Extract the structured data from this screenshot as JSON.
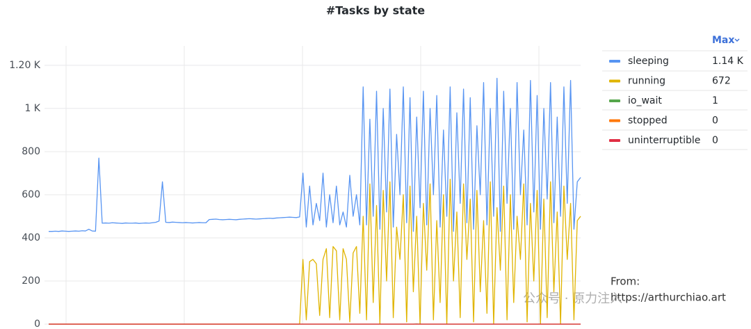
{
  "chart_data": {
    "type": "line",
    "title": "#Tasks by state",
    "ylim": [
      0,
      1290
    ],
    "yticks": [
      0,
      200,
      400,
      600,
      800,
      {
        "value": 1000,
        "label": "1 K"
      },
      {
        "value": 1200,
        "label": "1.20 K"
      }
    ],
    "grid": true,
    "legend_header": "Max",
    "legend": "right",
    "annotations": [
      "From:",
      "https://arthurchiao.art",
      "公众号 · 原力注入"
    ],
    "series": [
      {
        "name": "sleeping",
        "color": "#5794f2",
        "max": 1140,
        "max_label": "1.14 K",
        "values": [
          430,
          430,
          431,
          430,
          432,
          431,
          430,
          431,
          432,
          431,
          433,
          432,
          440,
          432,
          431,
          770,
          468,
          469,
          468,
          470,
          469,
          468,
          467,
          469,
          468,
          468,
          469,
          467,
          468,
          469,
          468,
          470,
          472,
          478,
          660,
          472,
          471,
          473,
          472,
          471,
          470,
          471,
          470,
          469,
          470,
          471,
          470,
          470,
          485,
          486,
          487,
          485,
          484,
          485,
          486,
          485,
          484,
          486,
          487,
          488,
          489,
          488,
          487,
          488,
          489,
          490,
          491,
          490,
          492,
          493,
          494,
          495,
          496,
          495,
          494,
          497,
          700,
          450,
          640,
          460,
          560,
          480,
          700,
          450,
          600,
          470,
          640,
          460,
          520,
          450,
          690,
          500,
          600,
          460,
          1100,
          460,
          950,
          500,
          1080,
          440,
          1000,
          520,
          1090,
          450,
          880,
          600,
          1100,
          470,
          1050,
          430,
          960,
          540,
          1080,
          460,
          1000,
          600,
          1060,
          450,
          900,
          500,
          1100,
          430,
          980,
          560,
          1090,
          470,
          1050,
          440,
          920,
          600,
          1120,
          460,
          1000,
          500,
          1140,
          430,
          1080,
          560,
          1000,
          440,
          1120,
          600,
          900,
          460,
          1130,
          520,
          1060,
          440,
          1000,
          580,
          1120,
          470,
          960,
          500,
          1100,
          560,
          1130,
          440,
          660,
          680
        ]
      },
      {
        "name": "running",
        "color": "#e0b400",
        "max": 672,
        "values": [
          0,
          0,
          0,
          0,
          0,
          0,
          0,
          0,
          0,
          0,
          0,
          0,
          0,
          0,
          0,
          0,
          0,
          0,
          0,
          0,
          0,
          0,
          0,
          0,
          0,
          0,
          0,
          0,
          0,
          0,
          0,
          0,
          0,
          0,
          0,
          0,
          0,
          0,
          0,
          0,
          0,
          0,
          0,
          0,
          0,
          0,
          0,
          0,
          0,
          0,
          0,
          0,
          0,
          0,
          0,
          0,
          0,
          0,
          0,
          0,
          0,
          0,
          0,
          0,
          0,
          0,
          0,
          0,
          0,
          0,
          0,
          0,
          0,
          0,
          0,
          0,
          300,
          20,
          290,
          300,
          280,
          40,
          300,
          350,
          30,
          360,
          340,
          20,
          350,
          300,
          10,
          330,
          360,
          50,
          500,
          20,
          650,
          100,
          550,
          0,
          620,
          200,
          660,
          30,
          450,
          300,
          600,
          10,
          640,
          150,
          500,
          0,
          560,
          250,
          650,
          20,
          480,
          100,
          600,
          0,
          672,
          200,
          520,
          30,
          650,
          300,
          580,
          10,
          620,
          150,
          480,
          50,
          660,
          0,
          540,
          250,
          640,
          20,
          600,
          100,
          500,
          300,
          650,
          10,
          560,
          200,
          620,
          0,
          580,
          30,
          660,
          150,
          520,
          0,
          640,
          300,
          560,
          20,
          480,
          500
        ]
      },
      {
        "name": "io_wait",
        "color": "#56a64b",
        "max": 1,
        "values": [
          0,
          0,
          0,
          0,
          0,
          0,
          0,
          0,
          0,
          0,
          0,
          0,
          0,
          0,
          0,
          0,
          0,
          0,
          0,
          0,
          0,
          0,
          0,
          0,
          0,
          0,
          0,
          0,
          0,
          0,
          0,
          0,
          0,
          0,
          0,
          0,
          0,
          0,
          0,
          0,
          0,
          0,
          0,
          0,
          0,
          0,
          0,
          0,
          0,
          0,
          0,
          0,
          0,
          0,
          0,
          0,
          0,
          0,
          0,
          0,
          0,
          0,
          0,
          0,
          0,
          0,
          0,
          0,
          0,
          0,
          0,
          0,
          0,
          0,
          0,
          0,
          0,
          0,
          0,
          0,
          0,
          0,
          0,
          0,
          0,
          0,
          0,
          0,
          0,
          0,
          0,
          0,
          0,
          0,
          0,
          0,
          0,
          0,
          0,
          0,
          0,
          0,
          0,
          0,
          0,
          0,
          0,
          0,
          0,
          0,
          1,
          0,
          0,
          0,
          0,
          0,
          0,
          0,
          0,
          0,
          0,
          0,
          0,
          0,
          0,
          0,
          0,
          0,
          0,
          0,
          0,
          0,
          0,
          0,
          0,
          0,
          0,
          0,
          0,
          0,
          0,
          0,
          0,
          0,
          0,
          0,
          0,
          0,
          0,
          0,
          0,
          0,
          0,
          0,
          0,
          0,
          0,
          0,
          0,
          0
        ]
      },
      {
        "name": "stopped",
        "color": "#ff780a",
        "max": 0,
        "values": [
          0,
          0,
          0,
          0,
          0,
          0,
          0,
          0,
          0,
          0,
          0,
          0,
          0,
          0,
          0,
          0,
          0,
          0,
          0,
          0,
          0,
          0,
          0,
          0,
          0,
          0,
          0,
          0,
          0,
          0,
          0,
          0,
          0,
          0,
          0,
          0,
          0,
          0,
          0,
          0,
          0,
          0,
          0,
          0,
          0,
          0,
          0,
          0,
          0,
          0,
          0,
          0,
          0,
          0,
          0,
          0,
          0,
          0,
          0,
          0,
          0,
          0,
          0,
          0,
          0,
          0,
          0,
          0,
          0,
          0,
          0,
          0,
          0,
          0,
          0,
          0,
          0,
          0,
          0,
          0,
          0,
          0,
          0,
          0,
          0,
          0,
          0,
          0,
          0,
          0,
          0,
          0,
          0,
          0,
          0,
          0,
          0,
          0,
          0,
          0,
          0,
          0,
          0,
          0,
          0,
          0,
          0,
          0,
          0,
          0,
          0,
          0,
          0,
          0,
          0,
          0,
          0,
          0,
          0,
          0,
          0,
          0,
          0,
          0,
          0,
          0,
          0,
          0,
          0,
          0,
          0,
          0,
          0,
          0,
          0,
          0,
          0,
          0,
          0,
          0,
          0,
          0,
          0,
          0,
          0,
          0,
          0,
          0,
          0,
          0,
          0,
          0,
          0,
          0,
          0,
          0,
          0,
          0,
          0,
          0
        ]
      },
      {
        "name": "uninterruptible",
        "color": "#e02f44",
        "max": 0,
        "values": [
          0,
          0,
          0,
          0,
          0,
          0,
          0,
          0,
          0,
          0,
          0,
          0,
          0,
          0,
          0,
          0,
          0,
          0,
          0,
          0,
          0,
          0,
          0,
          0,
          0,
          0,
          0,
          0,
          0,
          0,
          0,
          0,
          0,
          0,
          0,
          0,
          0,
          0,
          0,
          0,
          0,
          0,
          0,
          0,
          0,
          0,
          0,
          0,
          0,
          0,
          0,
          0,
          0,
          0,
          0,
          0,
          0,
          0,
          0,
          0,
          0,
          0,
          0,
          0,
          0,
          0,
          0,
          0,
          0,
          0,
          0,
          0,
          0,
          0,
          0,
          0,
          0,
          0,
          0,
          0,
          0,
          0,
          0,
          0,
          0,
          0,
          0,
          0,
          0,
          0,
          0,
          0,
          0,
          0,
          0,
          0,
          0,
          0,
          0,
          0,
          0,
          0,
          0,
          0,
          0,
          0,
          0,
          0,
          0,
          0,
          0,
          0,
          0,
          0,
          0,
          0,
          0,
          0,
          0,
          0,
          0,
          0,
          0,
          0,
          0,
          0,
          0,
          0,
          0,
          0,
          0,
          0,
          0,
          0,
          0,
          0,
          0,
          0,
          0,
          0,
          0,
          0,
          0,
          0,
          0,
          0,
          0,
          0,
          0,
          0,
          0,
          0,
          0,
          0,
          0,
          0,
          0,
          0,
          0,
          0
        ]
      }
    ]
  }
}
